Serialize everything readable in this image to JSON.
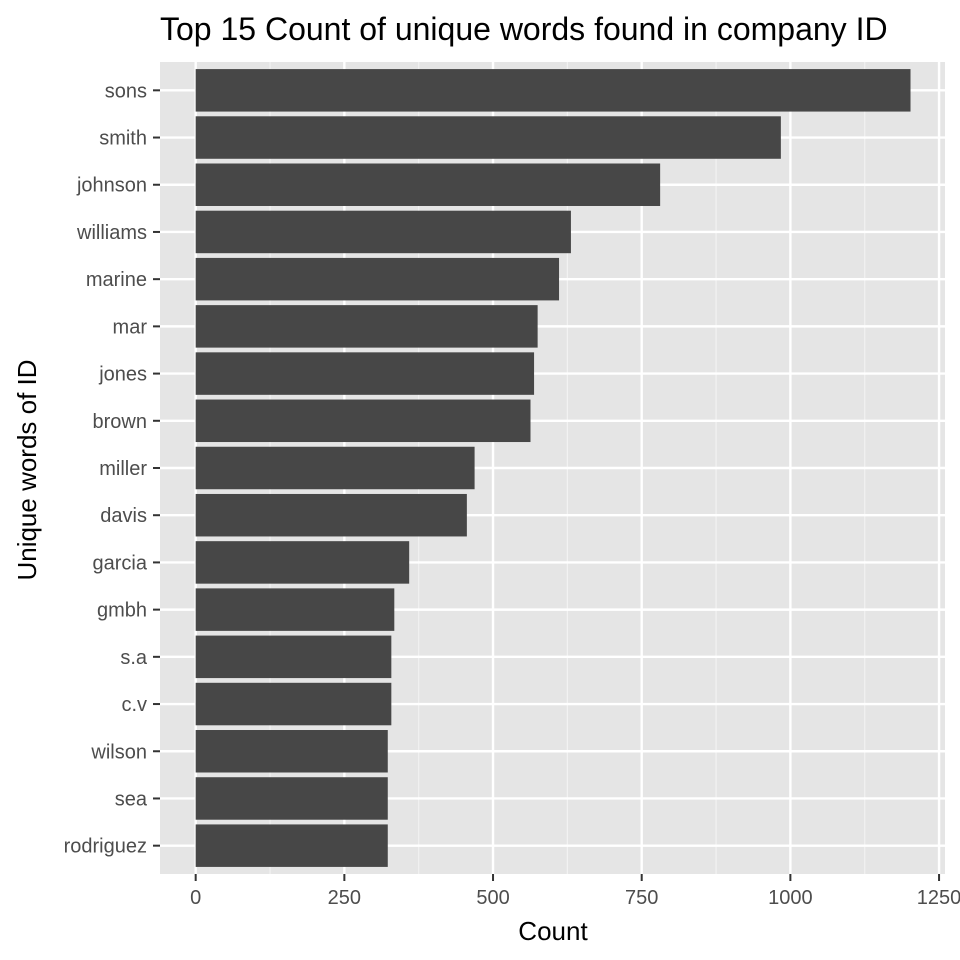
{
  "chart_data": {
    "type": "bar",
    "orientation": "horizontal",
    "title": "Top 15 Count of unique words found in company ID",
    "xlabel": "Count",
    "ylabel": "Unique words of ID",
    "categories": [
      "sons",
      "smith",
      "johnson",
      "williams",
      "marine",
      "mar",
      "jones",
      "brown",
      "miller",
      "davis",
      "garcia",
      "gmbh",
      "s.a",
      "c.v",
      "wilson",
      "sea",
      "rodriguez"
    ],
    "values": [
      1202,
      984,
      781,
      631,
      611,
      575,
      569,
      563,
      469,
      456,
      359,
      334,
      329,
      329,
      323,
      323,
      323
    ],
    "xlim": [
      -60,
      1260
    ],
    "xticks": [
      0,
      250,
      500,
      750,
      1000,
      1250
    ],
    "xtick_labels": [
      "0",
      "250",
      "500",
      "750",
      "1000",
      "1250"
    ],
    "grid": true,
    "colors": {
      "bar": "#474747",
      "panel_background": "#e5e5e5",
      "grid_major": "#ffffff",
      "grid_minor": "#f2f2f2",
      "tick_text": "#4d4d4d",
      "tick_mark": "#333333"
    }
  }
}
